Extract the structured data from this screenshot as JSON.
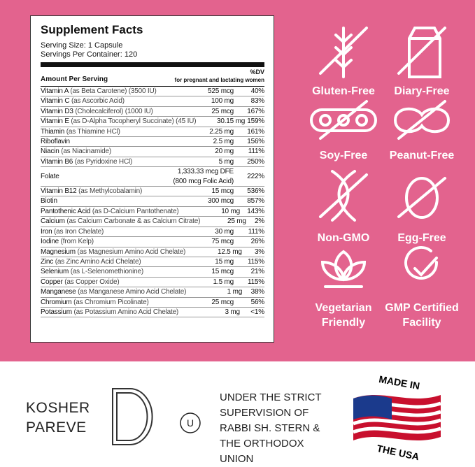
{
  "facts": {
    "title": "Supplement Facts",
    "serving_size": "Serving Size: 1 Capsule",
    "servings": "Servings Per Container: 120",
    "amount_header": "Amount Per Serving",
    "dv_header": "%DV",
    "dv_subheader": "for pregnant and lactating women",
    "rows": [
      [
        "Vitamin A",
        "(as Beta Carotene) (3500 IU)",
        [
          "525 mcg"
        ],
        "40%"
      ],
      [
        "Vitamin C",
        "(as Ascorbic Acid)",
        [
          "100 mg"
        ],
        "83%"
      ],
      [
        "Vitamin D3",
        "(Cholecalciferol) (1000 IU)",
        [
          "25 mcg"
        ],
        "167%"
      ],
      [
        "Vitamin E",
        "(as D-Alpha Tocopheryl Succinate) (45 IU)",
        [
          "30.15 mg"
        ],
        "159%"
      ],
      [
        "Thiamin",
        "(as Thiamine HCl)",
        [
          "2.25 mg"
        ],
        "161%"
      ],
      [
        "Riboflavin",
        "",
        [
          "2.5 mg"
        ],
        "156%"
      ],
      [
        "Niacin",
        "(as Niacinamide)",
        [
          "20 mg"
        ],
        "111%"
      ],
      [
        "Vitamin B6",
        "(as Pyridoxine HCl)",
        [
          "5 mg"
        ],
        "250%"
      ],
      [
        "Folate",
        "",
        [
          "1,333.33 mcg DFE",
          "(800 mcg Folic Acid)"
        ],
        "222%"
      ],
      [
        "Vitamin B12",
        "(as Methylcobalamin)",
        [
          "15 mcg"
        ],
        "536%"
      ],
      [
        "Biotin",
        "",
        [
          "300 mcg"
        ],
        "857%"
      ],
      [
        "Pantothenic Acid",
        "(as D-Calcium Pantothenate)",
        [
          "10 mg"
        ],
        "143%"
      ],
      [
        "Calcium",
        "(as Calcium Carbonate & as Calcium Citrate)",
        [
          "25 mg"
        ],
        "2%"
      ],
      [
        "Iron",
        "(as Iron Chelate)",
        [
          "30 mg"
        ],
        "111%"
      ],
      [
        "Iodine",
        "(from Kelp)",
        [
          "75 mcg"
        ],
        "26%"
      ],
      [
        "Magnesium",
        "(as Magnesium Amino Acid Chelate)",
        [
          "12.5 mg"
        ],
        "3%"
      ],
      [
        "Zinc",
        "(as Zinc Amino Acid Chelate)",
        [
          "15 mg"
        ],
        "115%"
      ],
      [
        "Selenium",
        "(as L-Selenomethionine)",
        [
          "15 mcg"
        ],
        "21%"
      ],
      [
        "Copper",
        "(as Copper Oxide)",
        [
          "1.5 mg"
        ],
        "115%"
      ],
      [
        "Manganese",
        "(as Manganese Amino Acid Chelate)",
        [
          "1 mg"
        ],
        "38%"
      ],
      [
        "Chromium",
        "(as Chromium Picolinate)",
        [
          "25 mcg"
        ],
        "56%"
      ],
      [
        "Potassium",
        "(as Potassium Amino Acid Chelate)",
        [
          "3 mg"
        ],
        "<1%"
      ]
    ]
  },
  "badges": [
    [
      "Gluten-Free"
    ],
    [
      "Diary-Free"
    ],
    [
      "Soy-Free"
    ],
    [
      "Peanut-Free"
    ],
    [
      "Non-GMO"
    ],
    [
      "Egg-Free"
    ],
    [
      "Vegetarian",
      "Friendly"
    ],
    [
      "GMP Certified",
      "Facility"
    ]
  ],
  "kosher": {
    "line1": "KOSHER",
    "line2": "PAREVE",
    "symbol": "U",
    "supervision": [
      "UNDER THE STRICT",
      "SUPERVISION OF",
      "RABBI SH. STERN &",
      "THE ORTHODOX",
      "UNION"
    ]
  },
  "usa": {
    "top": "MADE IN",
    "bottom": "THE USA"
  }
}
